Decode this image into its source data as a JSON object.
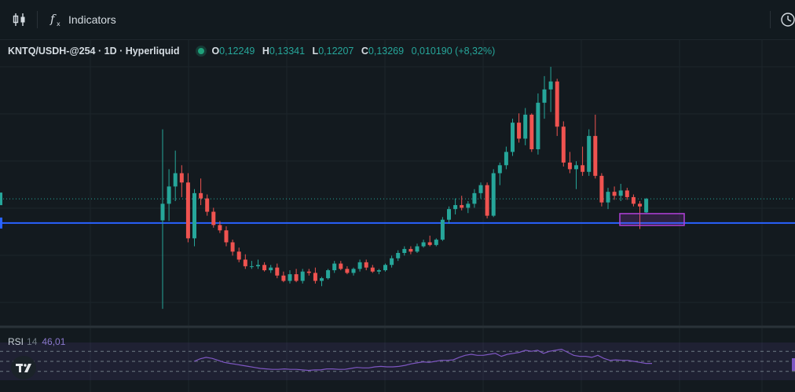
{
  "toolbar": {
    "indicators_label": "Indicators",
    "icons": [
      "candles-icon",
      "fx-icon",
      "clock-icon"
    ]
  },
  "legend": {
    "symbol": "KNTQ/USDH-@254 · 1D · Hyperliquid",
    "o_key": "O",
    "o_val": "0,12249",
    "h_key": "H",
    "h_val": "0,13341",
    "l_key": "L",
    "l_val": "0,12207",
    "c_key": "C",
    "c_val": "0,13269",
    "change": "0,010190 (+8,32%)"
  },
  "rsi": {
    "name": "RSI",
    "length": "14",
    "value": "46,01"
  },
  "colors": {
    "up": "#26a69a",
    "down": "#ef5350",
    "background": "#131a1f",
    "support_line": "#2962ff",
    "zone_border": "#b040d8",
    "rsi_line": "#7e57c2"
  },
  "chart_data": {
    "type": "candlestick",
    "interval": "1D",
    "price_range": [
      0.04,
      0.235
    ],
    "last_close": 0.13269,
    "support_level": 0.1145,
    "candles": [
      [
        0.1165,
        0.185,
        0.05,
        0.129
      ],
      [
        0.129,
        0.155,
        0.116,
        0.142
      ],
      [
        0.142,
        0.169,
        0.131,
        0.152
      ],
      [
        0.152,
        0.158,
        0.134,
        0.145
      ],
      [
        0.145,
        0.152,
        0.1,
        0.103
      ],
      [
        0.103,
        0.14,
        0.097,
        0.137
      ],
      [
        0.137,
        0.148,
        0.128,
        0.133
      ],
      [
        0.133,
        0.136,
        0.12,
        0.123
      ],
      [
        0.123,
        0.126,
        0.111,
        0.113
      ],
      [
        0.113,
        0.116,
        0.107,
        0.109
      ],
      [
        0.109,
        0.112,
        0.097,
        0.1
      ],
      [
        0.1,
        0.102,
        0.09,
        0.093
      ],
      [
        0.093,
        0.096,
        0.085,
        0.087
      ],
      [
        0.087,
        0.091,
        0.08,
        0.082
      ],
      [
        0.082,
        0.086,
        0.08,
        0.082
      ],
      [
        0.082,
        0.087,
        0.08,
        0.083
      ],
      [
        0.083,
        0.085,
        0.078,
        0.079
      ],
      [
        0.079,
        0.083,
        0.077,
        0.081
      ],
      [
        0.081,
        0.084,
        0.073,
        0.075
      ],
      [
        0.075,
        0.078,
        0.07,
        0.071
      ],
      [
        0.071,
        0.079,
        0.069,
        0.076
      ],
      [
        0.076,
        0.08,
        0.07,
        0.071
      ],
      [
        0.071,
        0.08,
        0.069,
        0.078
      ],
      [
        0.078,
        0.08,
        0.075,
        0.077
      ],
      [
        0.077,
        0.081,
        0.069,
        0.071
      ],
      [
        0.071,
        0.074,
        0.067,
        0.073
      ],
      [
        0.073,
        0.08,
        0.072,
        0.079
      ],
      [
        0.079,
        0.086,
        0.077,
        0.084
      ],
      [
        0.084,
        0.086,
        0.079,
        0.08
      ],
      [
        0.08,
        0.082,
        0.076,
        0.077
      ],
      [
        0.077,
        0.081,
        0.075,
        0.08
      ],
      [
        0.08,
        0.087,
        0.078,
        0.085
      ],
      [
        0.085,
        0.087,
        0.079,
        0.081
      ],
      [
        0.081,
        0.083,
        0.077,
        0.078
      ],
      [
        0.078,
        0.08,
        0.076,
        0.079
      ],
      [
        0.079,
        0.084,
        0.078,
        0.083
      ],
      [
        0.083,
        0.09,
        0.081,
        0.088
      ],
      [
        0.088,
        0.094,
        0.086,
        0.092
      ],
      [
        0.092,
        0.097,
        0.09,
        0.095
      ],
      [
        0.095,
        0.097,
        0.091,
        0.093
      ],
      [
        0.093,
        0.099,
        0.092,
        0.097
      ],
      [
        0.097,
        0.102,
        0.096,
        0.1
      ],
      [
        0.1,
        0.105,
        0.097,
        0.098
      ],
      [
        0.098,
        0.103,
        0.097,
        0.102
      ],
      [
        0.102,
        0.119,
        0.101,
        0.117
      ],
      [
        0.117,
        0.127,
        0.114,
        0.125
      ],
      [
        0.125,
        0.133,
        0.121,
        0.128
      ],
      [
        0.128,
        0.135,
        0.124,
        0.126
      ],
      [
        0.126,
        0.131,
        0.122,
        0.129
      ],
      [
        0.129,
        0.14,
        0.126,
        0.137
      ],
      [
        0.137,
        0.145,
        0.133,
        0.143
      ],
      [
        0.143,
        0.145,
        0.118,
        0.12
      ],
      [
        0.12,
        0.155,
        0.119,
        0.152
      ],
      [
        0.152,
        0.16,
        0.143,
        0.158
      ],
      [
        0.158,
        0.172,
        0.155,
        0.168
      ],
      [
        0.168,
        0.193,
        0.165,
        0.19
      ],
      [
        0.19,
        0.197,
        0.175,
        0.178
      ],
      [
        0.178,
        0.201,
        0.173,
        0.196
      ],
      [
        0.196,
        0.197,
        0.168,
        0.17
      ],
      [
        0.17,
        0.212,
        0.166,
        0.205
      ],
      [
        0.205,
        0.225,
        0.193,
        0.215
      ],
      [
        0.215,
        0.232,
        0.198,
        0.221
      ],
      [
        0.221,
        0.223,
        0.18,
        0.187
      ],
      [
        0.187,
        0.191,
        0.157,
        0.16
      ],
      [
        0.16,
        0.168,
        0.152,
        0.155
      ],
      [
        0.155,
        0.161,
        0.14,
        0.158
      ],
      [
        0.158,
        0.172,
        0.15,
        0.153
      ],
      [
        0.153,
        0.185,
        0.15,
        0.18
      ],
      [
        0.18,
        0.196,
        0.148,
        0.15
      ],
      [
        0.15,
        0.152,
        0.127,
        0.13
      ],
      [
        0.13,
        0.141,
        0.125,
        0.138
      ],
      [
        0.138,
        0.142,
        0.132,
        0.135
      ],
      [
        0.135,
        0.144,
        0.131,
        0.139
      ],
      [
        0.139,
        0.141,
        0.132,
        0.134
      ],
      [
        0.134,
        0.136,
        0.127,
        0.129
      ],
      [
        0.129,
        0.131,
        0.11,
        0.127
      ],
      [
        0.12249,
        0.13341,
        0.12207,
        0.13269
      ]
    ],
    "rsi_series": [
      50,
      55,
      58,
      56,
      52,
      48,
      46,
      44,
      42,
      40,
      38,
      36,
      35,
      34,
      34,
      35,
      34,
      34,
      33,
      32,
      33,
      33,
      35,
      35,
      34,
      34,
      36,
      38,
      37,
      37,
      39,
      40,
      39,
      39,
      40,
      42,
      45,
      47,
      49,
      48,
      50,
      52,
      52,
      53,
      58,
      62,
      64,
      62,
      62,
      64,
      66,
      60,
      64,
      66,
      68,
      72,
      70,
      72,
      66,
      70,
      72,
      74,
      68,
      62,
      60,
      60,
      58,
      62,
      56,
      52,
      53,
      52,
      52,
      50,
      48,
      46,
      46.01
    ],
    "rsi_levels": [
      70,
      50,
      30
    ]
  }
}
